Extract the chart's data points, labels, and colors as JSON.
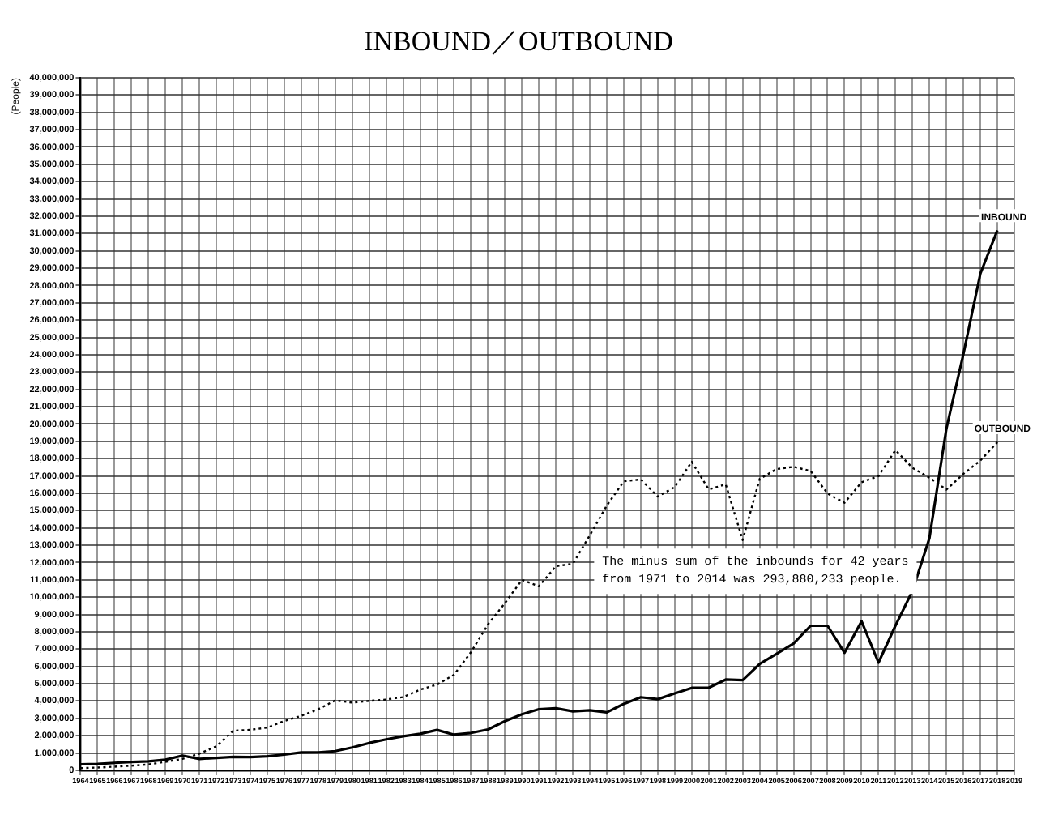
{
  "chart_data": {
    "type": "line",
    "title": "INBOUND／OUTBOUND",
    "ylabel": "(People)",
    "categories": [
      "1964",
      "1965",
      "1966",
      "1967",
      "1968",
      "1969",
      "1970",
      "1971",
      "1972",
      "1973",
      "1974",
      "1975",
      "1976",
      "1977",
      "1978",
      "1979",
      "1980",
      "1981",
      "1982",
      "1983",
      "1984",
      "1985",
      "1986",
      "1987",
      "1988",
      "1989",
      "1990",
      "1991",
      "1992",
      "1993",
      "1994",
      "1995",
      "1996",
      "1997",
      "1998",
      "1999",
      "2000",
      "2001",
      "2002",
      "2003",
      "2004",
      "2005",
      "2006",
      "2007",
      "2008",
      "2009",
      "2010",
      "2011",
      "2012",
      "2013",
      "2014",
      "2015",
      "2016",
      "2017",
      "2018",
      "2019"
    ],
    "series": [
      {
        "name": "INBOUND",
        "color": "#000000",
        "line_style": "solid",
        "values": [
          350000,
          370000,
          430000,
          480000,
          520000,
          610000,
          850000,
          660000,
          720000,
          780000,
          760000,
          810000,
          910000,
          1030000,
          1040000,
          1110000,
          1320000,
          1580000,
          1790000,
          1970000,
          2110000,
          2330000,
          2060000,
          2160000,
          2360000,
          2840000,
          3240000,
          3530000,
          3580000,
          3410000,
          3470000,
          3350000,
          3840000,
          4220000,
          4110000,
          4440000,
          4760000,
          4770000,
          5240000,
          5210000,
          6140000,
          6730000,
          7330000,
          8350000,
          8350000,
          6790000,
          8610000,
          6220000,
          8360000,
          10360000,
          13410000,
          19740000,
          24040000,
          28690000,
          31190000,
          null
        ]
      },
      {
        "name": "OUTBOUND",
        "color": "#000000",
        "line_style": "dotted",
        "values": [
          130000,
          160000,
          210000,
          270000,
          340000,
          490000,
          660000,
          960000,
          1390000,
          2290000,
          2340000,
          2470000,
          2850000,
          3150000,
          3530000,
          4040000,
          3910000,
          4010000,
          4090000,
          4230000,
          4660000,
          4950000,
          5520000,
          6830000,
          8430000,
          9660000,
          11000000,
          10630000,
          11790000,
          11930000,
          13580000,
          15300000,
          16690000,
          16800000,
          15810000,
          16360000,
          17820000,
          16220000,
          16520000,
          13300000,
          16830000,
          17400000,
          17530000,
          17290000,
          15990000,
          15450000,
          16640000,
          16990000,
          18490000,
          17470000,
          16900000,
          16210000,
          17120000,
          17890000,
          18950000,
          null
        ]
      }
    ],
    "ylim": [
      0,
      40000000
    ],
    "yticks": [
      0,
      {
        "value": 1000000,
        "label": "1,000,000"
      },
      {
        "value": 2000000,
        "label": "2,000,000"
      },
      {
        "value": 3000000,
        "label": "3,000,000"
      },
      {
        "value": 4000000,
        "label": "4,000,000"
      },
      {
        "value": 5000000,
        "label": "5,000,000"
      },
      {
        "value": 6000000,
        "label": "6,000,000"
      },
      {
        "value": 7000000,
        "label": "7,000,000"
      },
      {
        "value": 8000000,
        "label": "8,000,000"
      },
      {
        "value": 9000000,
        "label": "9,000,000"
      },
      {
        "value": 10000000,
        "label": "10,000,000"
      },
      {
        "value": 11000000,
        "label": "11,000,000"
      },
      {
        "value": 12000000,
        "label": "12,000,000"
      },
      {
        "value": 13000000,
        "label": "13,000,000"
      },
      {
        "value": 14000000,
        "label": "14,000,000"
      },
      {
        "value": 15000000,
        "label": "15,000,000"
      },
      {
        "value": 16000000,
        "label": "16,000,000"
      },
      {
        "value": 17000000,
        "label": "17,000,000"
      },
      {
        "value": 18000000,
        "label": "18,000,000"
      },
      {
        "value": 19000000,
        "label": "19,000,000"
      },
      {
        "value": 20000000,
        "label": "20,000,000"
      },
      {
        "value": 21000000,
        "label": "21,000,000"
      },
      {
        "value": 22000000,
        "label": "22,000,000"
      },
      {
        "value": 23000000,
        "label": "23,000,000"
      },
      {
        "value": 24000000,
        "label": "24,000,000"
      },
      {
        "value": 25000000,
        "label": "25,000,000"
      },
      {
        "value": 26000000,
        "label": "26,000,000"
      },
      {
        "value": 27000000,
        "label": "27,000,000"
      },
      {
        "value": 28000000,
        "label": "28,000,000"
      },
      {
        "value": 29000000,
        "label": "29,000,000"
      },
      {
        "value": 30000000,
        "label": "30,000,000"
      },
      {
        "value": 31000000,
        "label": "31,000,000"
      },
      {
        "value": 32000000,
        "label": "32,000,000"
      },
      {
        "value": 33000000,
        "label": "33,000,000"
      },
      {
        "value": 34000000,
        "label": "34,000,000"
      },
      {
        "value": 35000000,
        "label": "35,000,000"
      },
      {
        "value": 36000000,
        "label": "36,000,000"
      },
      {
        "value": 37000000,
        "label": "37,000,000"
      },
      {
        "value": 38000000,
        "label": "38,000,000"
      },
      {
        "value": 39000000,
        "label": "39,000,000"
      },
      {
        "value": 40000000,
        "label": "40,000,000"
      }
    ],
    "annotations": [
      "The minus sum of the inbounds for 42 years\nfrom 1971 to 2014 was 293,880,233 people."
    ],
    "grid": true,
    "marker": "none",
    "legend": false
  }
}
